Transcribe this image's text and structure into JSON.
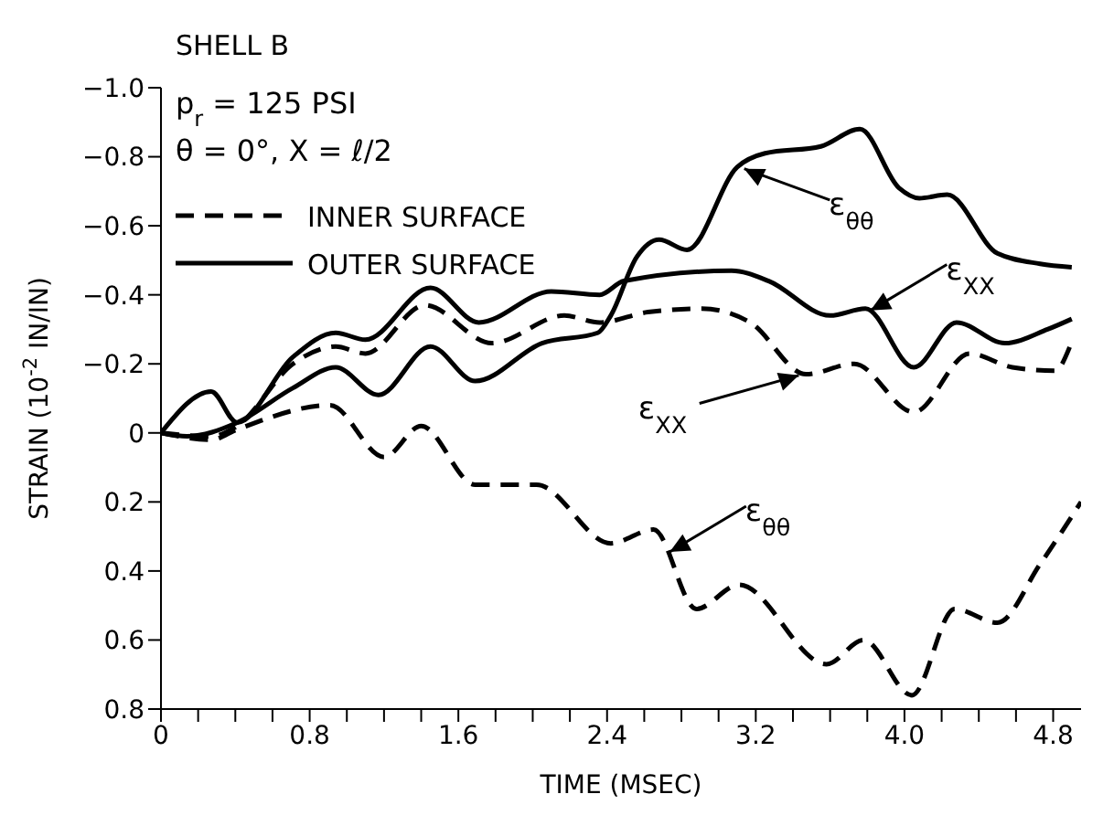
{
  "chart_data": {
    "type": "line",
    "title": "SHELL B",
    "xlabel": "TIME (MSEC)",
    "ylabel": "STRAIN  (10$^{-2}$ IN/IN)",
    "annotations": [
      "p$_{r}$ = 125 PSI",
      "θ = 0°, X = ℓ/2",
      {
        "text": "ε$_{θθ}$",
        "x": 3.12,
        "y": -0.77
      },
      {
        "text": "ε$_{XX}$",
        "x": 3.8,
        "y": -0.35
      },
      {
        "text": "ε$_{XX}$",
        "x": 3.45,
        "y": -0.17
      },
      {
        "text": "ε$_{θθ}$",
        "x": 2.72,
        "y": 0.35
      }
    ],
    "xlim": [
      0,
      4.95
    ],
    "xticks": [
      0,
      {
        "value": 0.2,
        "label": null
      },
      {
        "value": 0.4,
        "label": null
      },
      {
        "value": 0.6,
        "label": null
      },
      {
        "value": 0.8,
        "label": "0.8"
      },
      {
        "value": 1.0,
        "label": null
      },
      {
        "value": 1.2,
        "label": null
      },
      {
        "value": 1.4,
        "label": null
      },
      {
        "value": 1.6,
        "label": "1.6"
      },
      {
        "value": 1.8,
        "label": null
      },
      {
        "value": 2.0,
        "label": null
      },
      {
        "value": 2.2,
        "label": null
      },
      {
        "value": 2.4,
        "label": "2.4"
      },
      {
        "value": 2.6,
        "label": null
      },
      {
        "value": 2.8,
        "label": null
      },
      {
        "value": 3.0,
        "label": null
      },
      {
        "value": 3.2,
        "label": "3.2"
      },
      {
        "value": 3.4,
        "label": null
      },
      {
        "value": 3.6,
        "label": null
      },
      {
        "value": 3.8,
        "label": null
      },
      {
        "value": 4.0,
        "label": "4.0"
      },
      {
        "value": 4.2,
        "label": null
      },
      {
        "value": 4.4,
        "label": null
      },
      {
        "value": 4.6,
        "label": null
      },
      {
        "value": 4.8,
        "label": "4.8"
      }
    ],
    "ylim": [
      0.8,
      -1.0
    ],
    "yticks": [
      {
        "value": -1.0,
        "label": "−1.0"
      },
      {
        "value": -0.8,
        "label": "−0.8"
      },
      {
        "value": -0.6,
        "label": "−0.6"
      },
      {
        "value": -0.4,
        "label": "−0.4"
      },
      {
        "value": -0.2,
        "label": "−0.2"
      },
      0,
      {
        "value": 0.2,
        "label": "0.2"
      },
      {
        "value": 0.4,
        "label": "0.4"
      },
      {
        "value": 0.6,
        "label": "0.6"
      },
      {
        "value": 0.8,
        "label": "0.8"
      }
    ],
    "grid": false,
    "legend": "top left",
    "marker": "none",
    "series": [
      {
        "name": "INNER SURFACE",
        "color": "#000000",
        "line_style": "dashed",
        "x": [
          0,
          0.27,
          0.41,
          0.71,
          0.94,
          1.1,
          1.42,
          1.78,
          2.17,
          2.36,
          2.62,
          2.91,
          3.17,
          3.47,
          3.73,
          4.05,
          4.35,
          4.58,
          4.81,
          4.89
        ],
        "values": [
          0,
          0.01,
          -0.02,
          -0.2,
          -0.25,
          -0.23,
          -0.37,
          -0.26,
          -0.34,
          -0.32,
          -0.35,
          -0.36,
          -0.32,
          -0.17,
          -0.2,
          -0.06,
          -0.23,
          -0.19,
          -0.18,
          -0.25
        ]
      },
      {
        "color": "#000000",
        "line_style": "dashed",
        "x": [
          0,
          0.27,
          0.41,
          0.91,
          1.2,
          1.4,
          1.69,
          2.02,
          2.42,
          2.65,
          2.88,
          3.11,
          3.58,
          3.78,
          4.04,
          4.27,
          4.5,
          4.73,
          4.95
        ],
        "values": [
          0,
          0.02,
          -0.01,
          -0.08,
          0.07,
          -0.02,
          0.15,
          0.15,
          0.32,
          0.28,
          0.51,
          0.44,
          0.67,
          0.6,
          0.76,
          0.51,
          0.55,
          0.38,
          0.2
        ]
      },
      {
        "name": "OUTER SURFACE",
        "color": "#000000",
        "line_style": "solid",
        "x": [
          0,
          0.27,
          0.41,
          0.71,
          0.94,
          1.1,
          1.45,
          1.71,
          2.1,
          2.36,
          2.49,
          3.07,
          3.27,
          3.6,
          3.79,
          4.05,
          4.28,
          4.54,
          4.77,
          4.9
        ],
        "values": [
          0,
          -0.12,
          -0.03,
          -0.22,
          -0.29,
          -0.27,
          -0.42,
          -0.32,
          -0.41,
          -0.4,
          -0.44,
          -0.47,
          -0.44,
          -0.34,
          -0.36,
          -0.19,
          -0.32,
          -0.26,
          -0.3,
          -0.33
        ]
      },
      {
        "color": "#000000",
        "line_style": "solid",
        "x": [
          0,
          0.14,
          0.41,
          0.71,
          0.94,
          1.17,
          1.45,
          1.69,
          2.05,
          2.35,
          2.42,
          2.56,
          2.68,
          2.83,
          3.1,
          3.25,
          3.55,
          3.76,
          3.97,
          4.08,
          4.23,
          4.5,
          4.73,
          4.9
        ],
        "values": [
          0,
          0.01,
          -0.03,
          -0.13,
          -0.19,
          -0.11,
          -0.25,
          -0.15,
          -0.26,
          -0.29,
          -0.34,
          -0.51,
          -0.56,
          -0.53,
          -0.77,
          -0.81,
          -0.83,
          -0.88,
          -0.71,
          -0.68,
          -0.69,
          -0.52,
          -0.49,
          -0.48
        ]
      }
    ]
  }
}
